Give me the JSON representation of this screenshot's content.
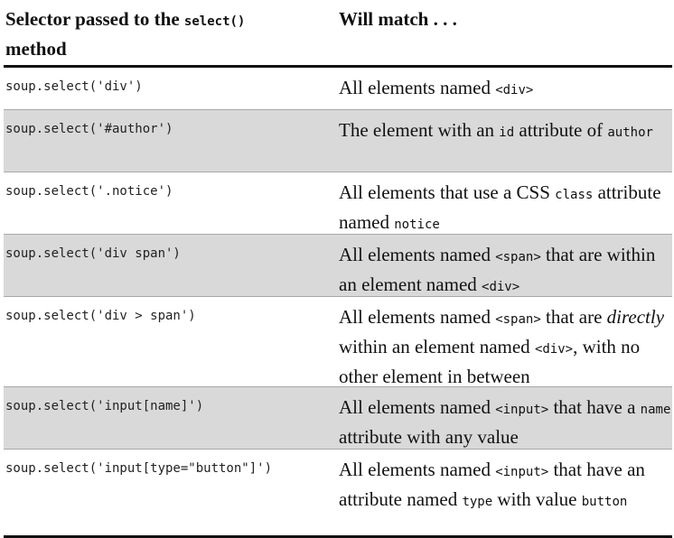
{
  "header": {
    "col1_part1": "Selector passed to the ",
    "col1_code": "select()",
    "col1_part2": " method",
    "col2": "Will match . . ."
  },
  "rows": [
    {
      "selector": "soup.select('div')",
      "match": {
        "t1": "All elements named ",
        "c1": "<div>"
      }
    },
    {
      "selector": "soup.select('#author')",
      "match": {
        "t1": "The element with an ",
        "c1": "id",
        "t2": " attribute of ",
        "c2": "author"
      }
    },
    {
      "selector": "soup.select('.notice')",
      "match": {
        "t1": "All elements that use a CSS ",
        "c1": "class",
        "t2": " attribute named ",
        "c2": "notice"
      }
    },
    {
      "selector": "soup.select('div span')",
      "match": {
        "t1": "All elements named ",
        "c1": "<span>",
        "t2": " that are within an element named ",
        "c2": "<div>"
      }
    },
    {
      "selector": "soup.select('div > span')",
      "match": {
        "t1": "All elements named ",
        "c1": "<span>",
        "t2": " that are ",
        "em": "directly",
        "t3": " within an element named ",
        "c2": "<div>",
        "t4": ", with no other element in between"
      }
    },
    {
      "selector": "soup.select('input[name]')",
      "match": {
        "t1": "All elements named ",
        "c1": "<input>",
        "t2": " that have a ",
        "c2": "name",
        "t3": " attribute with any value"
      }
    },
    {
      "selector": "soup.select('input[type=\"button\"]')",
      "match": {
        "t1": "All elements named ",
        "c1": "<input>",
        "t2": " that have an attribute named ",
        "c2": "type",
        "t3": " with value ",
        "c3": "button"
      }
    }
  ]
}
